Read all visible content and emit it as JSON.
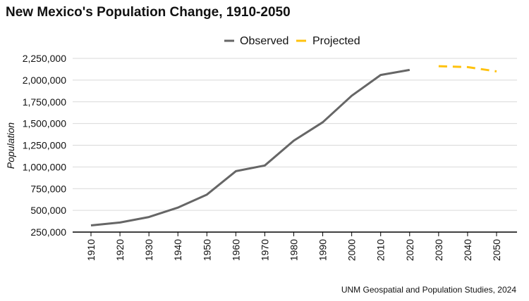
{
  "title": "New Mexico's Population Change, 1910-2050",
  "caption": "UNM Geospatial and Population Studies, 2024",
  "chart_data": {
    "type": "line",
    "title": "New Mexico's Population Change, 1910-2050",
    "xlabel": "",
    "ylabel": "Population",
    "x_ticks": [
      "1910",
      "1920",
      "1930",
      "1940",
      "1950",
      "1960",
      "1970",
      "1980",
      "1990",
      "2000",
      "2010",
      "2020",
      "2030",
      "2040",
      "2050"
    ],
    "y_ticks": [
      "250,000",
      "500,000",
      "750,000",
      "1,000,000",
      "1,250,000",
      "1,500,000",
      "1,750,000",
      "2,000,000",
      "2,250,000"
    ],
    "y_tick_values": [
      250000,
      500000,
      750000,
      1000000,
      1250000,
      1500000,
      1750000,
      2000000,
      2250000
    ],
    "ylim": [
      250000,
      2250000
    ],
    "xlim": [
      1910,
      2050
    ],
    "grid": "horizontal",
    "legend_position": "top",
    "series": [
      {
        "name": "Observed",
        "color": "#666666",
        "style": "solid",
        "x": [
          1910,
          1920,
          1930,
          1940,
          1950,
          1960,
          1970,
          1980,
          1990,
          2000,
          2010,
          2020
        ],
        "y": [
          327301,
          360350,
          423317,
          531818,
          681187,
          951023,
          1017055,
          1302894,
          1515069,
          1819046,
          2059179,
          2117522
        ]
      },
      {
        "name": "Projected",
        "color": "#FFC20E",
        "style": "dashed",
        "x": [
          2030,
          2040,
          2050
        ],
        "y": [
          2160000,
          2150000,
          2100000
        ]
      }
    ]
  }
}
